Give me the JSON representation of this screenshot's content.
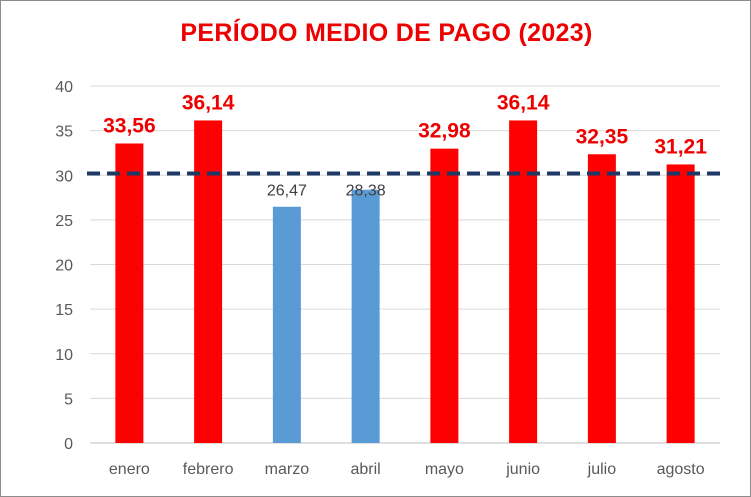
{
  "chart_data": {
    "type": "bar",
    "title": "PERÍODO MEDIO DE PAGO (2023)",
    "xlabel": "",
    "ylabel": "",
    "categories": [
      "enero",
      "febrero",
      "marzo",
      "abril",
      "mayo",
      "junio",
      "julio",
      "agosto"
    ],
    "values": [
      33.56,
      36.14,
      26.47,
      28.38,
      32.98,
      36.14,
      32.35,
      31.21
    ],
    "value_labels": [
      "33,56",
      "36,14",
      "26,47",
      "28,38",
      "32,98",
      "36,14",
      "32,35",
      "31,21"
    ],
    "ylim": [
      0,
      40
    ],
    "yticks": [
      "0",
      "5",
      "10",
      "15",
      "20",
      "25",
      "30",
      "35",
      "40"
    ],
    "grid": true,
    "legend": "none",
    "reference_line": {
      "value": 30.2,
      "style": "dashed",
      "color": "#1f3864"
    },
    "colors": {
      "above_reference": "#ff0000",
      "below_reference": "#5b9bd5",
      "title": "#ee0000",
      "gridline": "#d9d9d9"
    }
  }
}
